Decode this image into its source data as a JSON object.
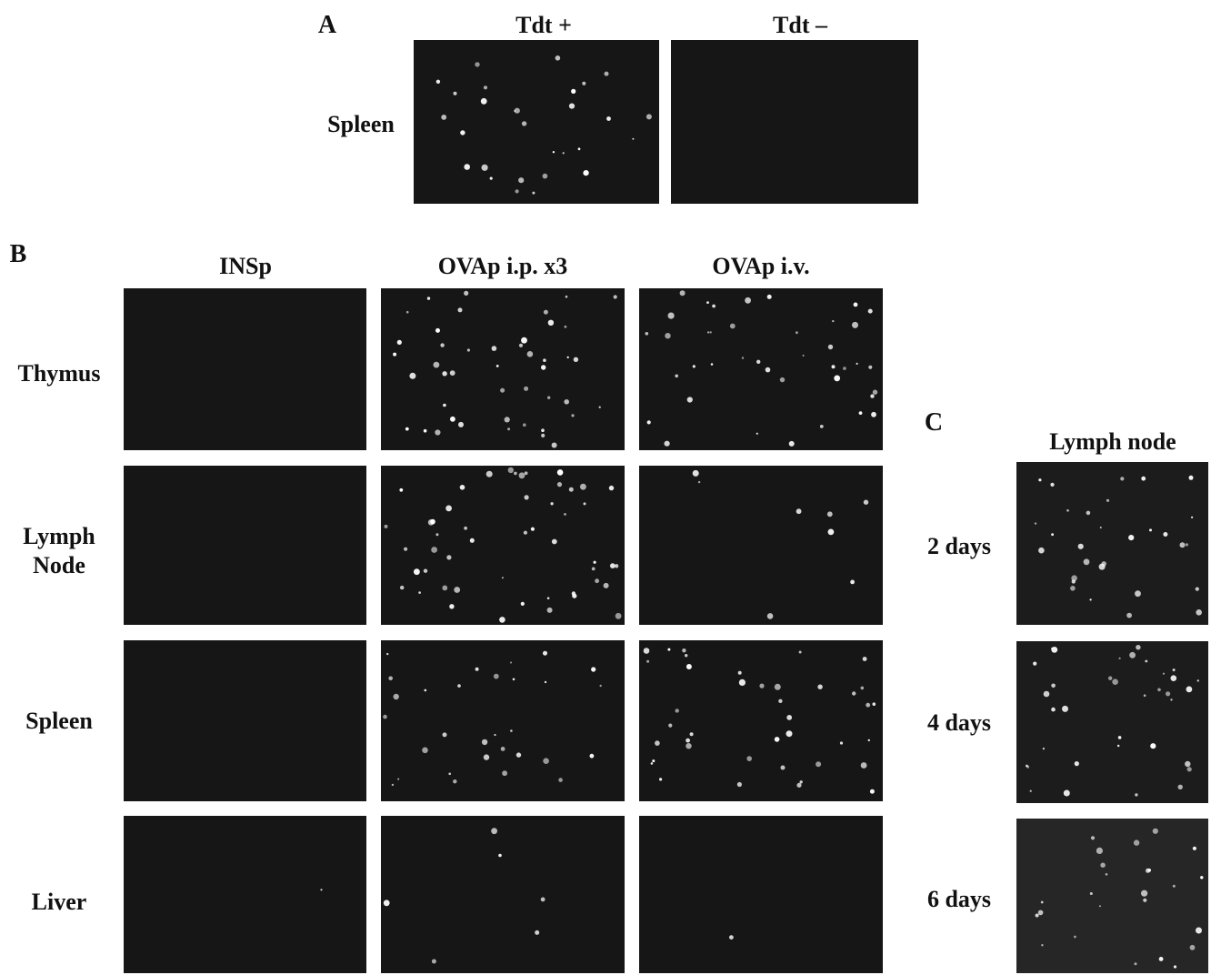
{
  "panel_a": {
    "label": "A",
    "columns": [
      "Tdt +",
      "Tdt –"
    ],
    "rows": [
      "Spleen"
    ]
  },
  "panel_b": {
    "label": "B",
    "columns": [
      "INSp",
      "OVAp i.p. x3",
      "OVAp i.v."
    ],
    "rows": [
      "Thymus",
      "Lymph Node",
      "Spleen",
      "Liver"
    ]
  },
  "panel_c": {
    "label": "C",
    "columns": [
      "Lymph node"
    ],
    "rows": [
      "2 days",
      "4 days",
      "6 days"
    ]
  }
}
